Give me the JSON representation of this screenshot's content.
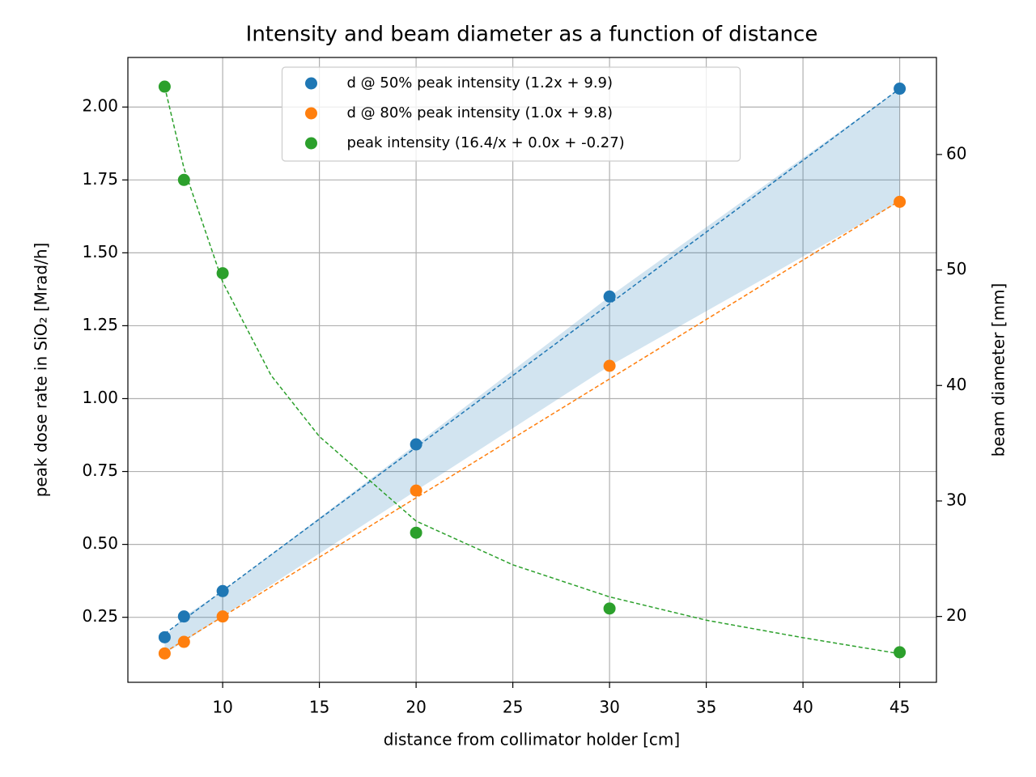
{
  "chart_data": {
    "type": "scatter",
    "title": "Intensity and beam diameter as a function of distance",
    "xlabel": "distance from collimator holder [cm]",
    "ylabel": "peak dose rate in SiO₂ [Mrad/h]",
    "y2label": "beam diameter [mm]",
    "x": [
      7,
      8,
      10,
      20,
      30,
      45
    ],
    "series": [
      {
        "name": "d @ 50% peak intensity (1.2x + 9.9)",
        "color": "#1f77b4",
        "axis": "y2",
        "values": [
          18.2,
          20.0,
          22.2,
          34.9,
          47.7,
          65.7
        ]
      },
      {
        "name": "d @ 80% peak intensity (1.0x + 9.8)",
        "color": "#ff7f0e",
        "axis": "y2",
        "values": [
          16.8,
          17.8,
          20.0,
          30.9,
          41.7,
          55.9
        ]
      },
      {
        "name": "peak intensity (16.4/x + 0.0x + -0.27)",
        "color": "#2ca02c",
        "axis": "y",
        "values": [
          2.07,
          1.75,
          1.43,
          0.54,
          0.28,
          0.13
        ]
      }
    ],
    "fits": [
      {
        "color": "#1f77b4",
        "axis": "y2",
        "x": [
          7,
          45
        ],
        "values": [
          18.5,
          65.7
        ]
      },
      {
        "color": "#ff7f0e",
        "axis": "y2",
        "x": [
          7,
          45
        ],
        "values": [
          16.9,
          56.0
        ]
      },
      {
        "color": "#2ca02c",
        "axis": "y",
        "x": [
          7,
          8,
          10,
          12.5,
          15,
          20,
          25,
          30,
          35,
          40,
          45
        ],
        "values": [
          2.07,
          1.79,
          1.4,
          1.08,
          0.87,
          0.58,
          0.43,
          0.32,
          0.24,
          0.18,
          0.125
        ]
      }
    ],
    "fill_between_first_two": true,
    "fill_color": "#1f77b4",
    "fill_opacity": 0.2,
    "xlim": [
      5.1,
      46.9
    ],
    "xticks": [
      10,
      15,
      20,
      25,
      30,
      35,
      40,
      45
    ],
    "ylim": [
      0.027,
      2.17
    ],
    "yticks": [
      0.25,
      {
        "value": 0.5,
        "label": "0.50"
      },
      {
        "value": 0.75,
        "label": "0.75"
      },
      {
        "value": 1.0,
        "label": "1.00"
      },
      1.25,
      {
        "value": 1.5,
        "label": "1.50"
      },
      1.75,
      {
        "value": 2.0,
        "label": "2.00"
      }
    ],
    "y2lim": [
      14.3,
      68.4
    ],
    "y2ticks": [
      20,
      30,
      40,
      50,
      60
    ],
    "grid": true,
    "legend": "upper center"
  }
}
